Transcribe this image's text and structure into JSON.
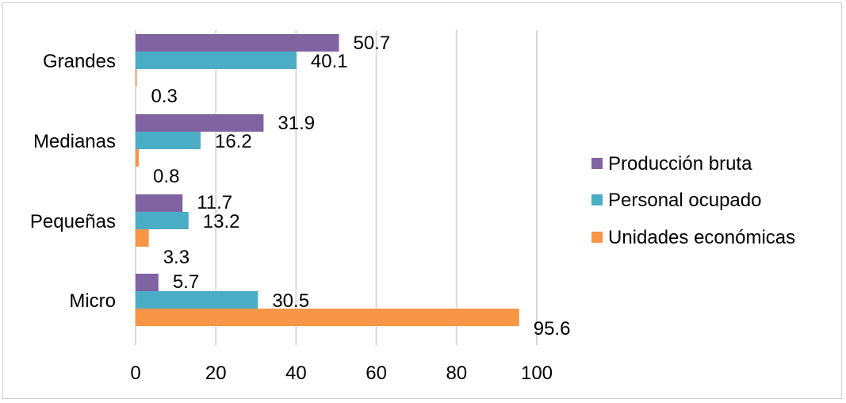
{
  "chart_data": {
    "type": "bar",
    "orientation": "horizontal",
    "categories": [
      "Grandes",
      "Medianas",
      "Pequeñas",
      "Micro"
    ],
    "series": [
      {
        "name": "Producción bruta",
        "color": "#8064A2",
        "values": [
          50.7,
          31.9,
          11.7,
          5.7
        ]
      },
      {
        "name": "Personal ocupado",
        "color": "#4BACC6",
        "values": [
          40.1,
          16.2,
          13.2,
          30.5
        ]
      },
      {
        "name": "Unidades económicas",
        "color": "#F79646",
        "values": [
          0.3,
          0.8,
          3.3,
          95.6
        ]
      }
    ],
    "data_labels": [
      [
        "50.7",
        "40.1",
        "0.3"
      ],
      [
        "31.9",
        "16.2",
        "0.8"
      ],
      [
        "11.7",
        "13.2",
        "3.3"
      ],
      [
        "5.7",
        "30.5",
        "95.6"
      ]
    ],
    "xlim": [
      0,
      100
    ],
    "xticks": [
      "0",
      "20",
      "40",
      "60",
      "80",
      "100"
    ],
    "grid": "vertical",
    "legend_position": "right",
    "gridline_color": "#D9D9D9",
    "title": "",
    "xlabel": "",
    "ylabel": ""
  }
}
